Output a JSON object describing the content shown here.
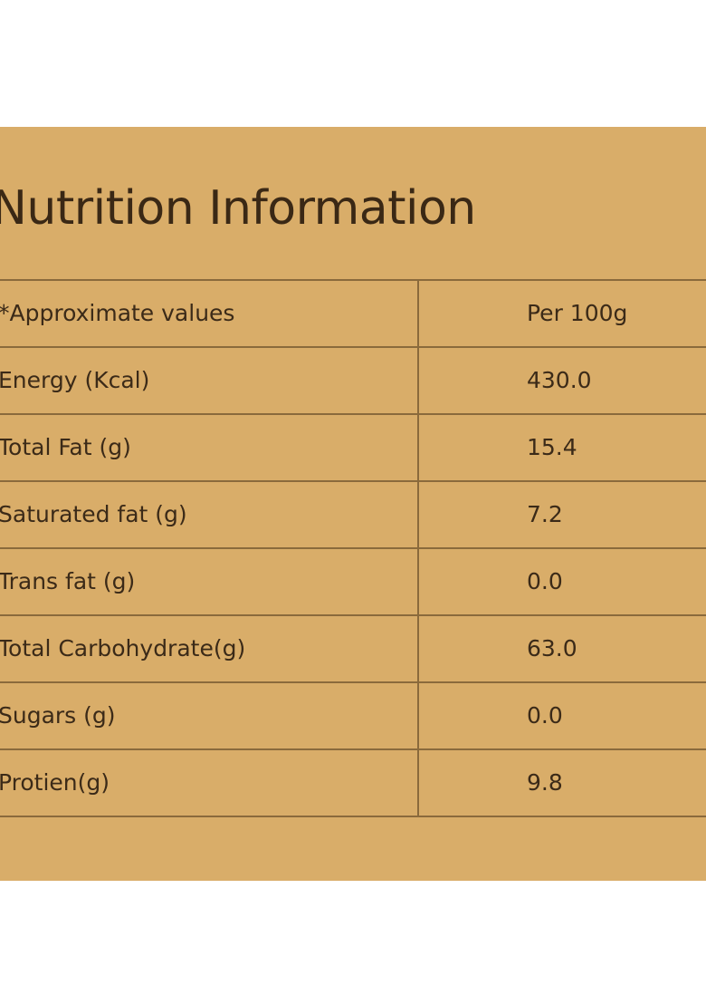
{
  "title": "Nutrition Information",
  "table": {
    "header": {
      "label": "*Approximate values",
      "value": "Per 100g"
    },
    "rows": [
      {
        "label": "Energy (Kcal)",
        "value": "430.0"
      },
      {
        "label": "Total Fat (g)",
        "value": "15.4"
      },
      {
        "label": "Saturated fat (g)",
        "value": "7.2"
      },
      {
        "label": "Trans fat (g)",
        "value": "0.0"
      },
      {
        "label": "Total Carbohydrate(g)",
        "value": "63.0"
      },
      {
        "label": "Sugars (g)",
        "value": "0.0"
      },
      {
        "label": "Protien(g)",
        "value": "9.8"
      }
    ]
  },
  "colors": {
    "background": "#d9ad69",
    "text": "#3b2a18",
    "lines": "#8a6a3c"
  }
}
